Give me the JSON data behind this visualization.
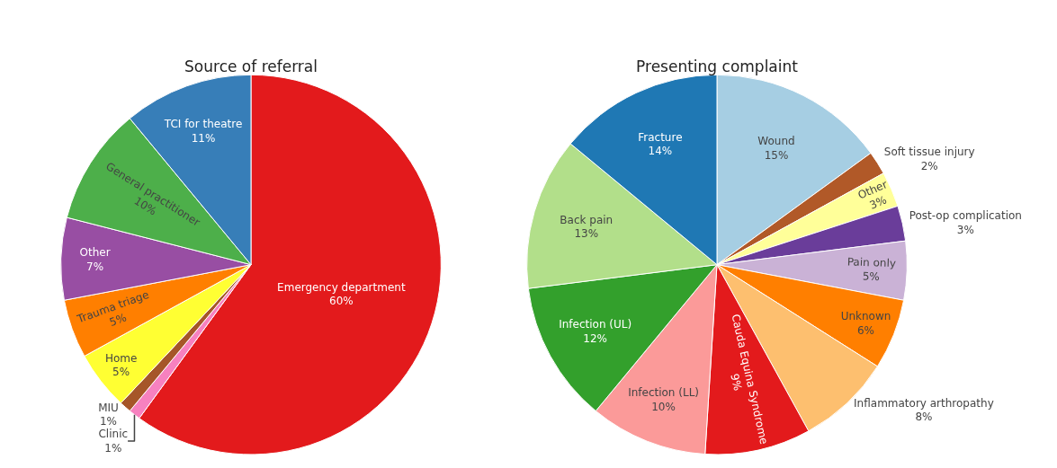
{
  "chart_data": [
    {
      "type": "pie",
      "title": "Source of referral",
      "categories": [
        "Emergency department",
        "Clinic",
        "MIU",
        "Home",
        "Trauma triage",
        "Other",
        "General practitioner",
        "TCI for theatre"
      ],
      "values": [
        60,
        1,
        1,
        5,
        5,
        7,
        10,
        11
      ],
      "value_labels": [
        "60%",
        "1%",
        "1%",
        "5%",
        "5%",
        "7%",
        "10%",
        "11%"
      ],
      "colors": [
        "#e31a1c",
        "#f781bf",
        "#a65628",
        "#ffff33",
        "#ff7f00",
        "#984ea3",
        "#4daf4a",
        "#377eb8"
      ],
      "legend": false
    },
    {
      "type": "pie",
      "title": "Presenting complaint",
      "categories": [
        "Wound",
        "Soft tissue injury",
        "Other",
        "Post-op complication",
        "Pain only",
        "Unknown",
        "Inflammatory arthropathy",
        "Cauda Equina Syndrome",
        "Infection (LL)",
        "Infection (UL)",
        "Back pain",
        "Fracture"
      ],
      "values": [
        15,
        2,
        3,
        3,
        5,
        6,
        8,
        9,
        10,
        12,
        13,
        14
      ],
      "value_labels": [
        "15%",
        "2%",
        "3%",
        "3%",
        "5%",
        "6%",
        "8%",
        "9%",
        "10%",
        "12%",
        "13%",
        "14%"
      ],
      "colors": [
        "#a6cee3",
        "#b15928",
        "#ffff99",
        "#6a3d9a",
        "#cab2d6",
        "#ff7f00",
        "#fdbf6f",
        "#e31a1c",
        "#fb9a99",
        "#33a02c",
        "#b2df8a",
        "#1f78b4"
      ],
      "legend": false
    }
  ]
}
